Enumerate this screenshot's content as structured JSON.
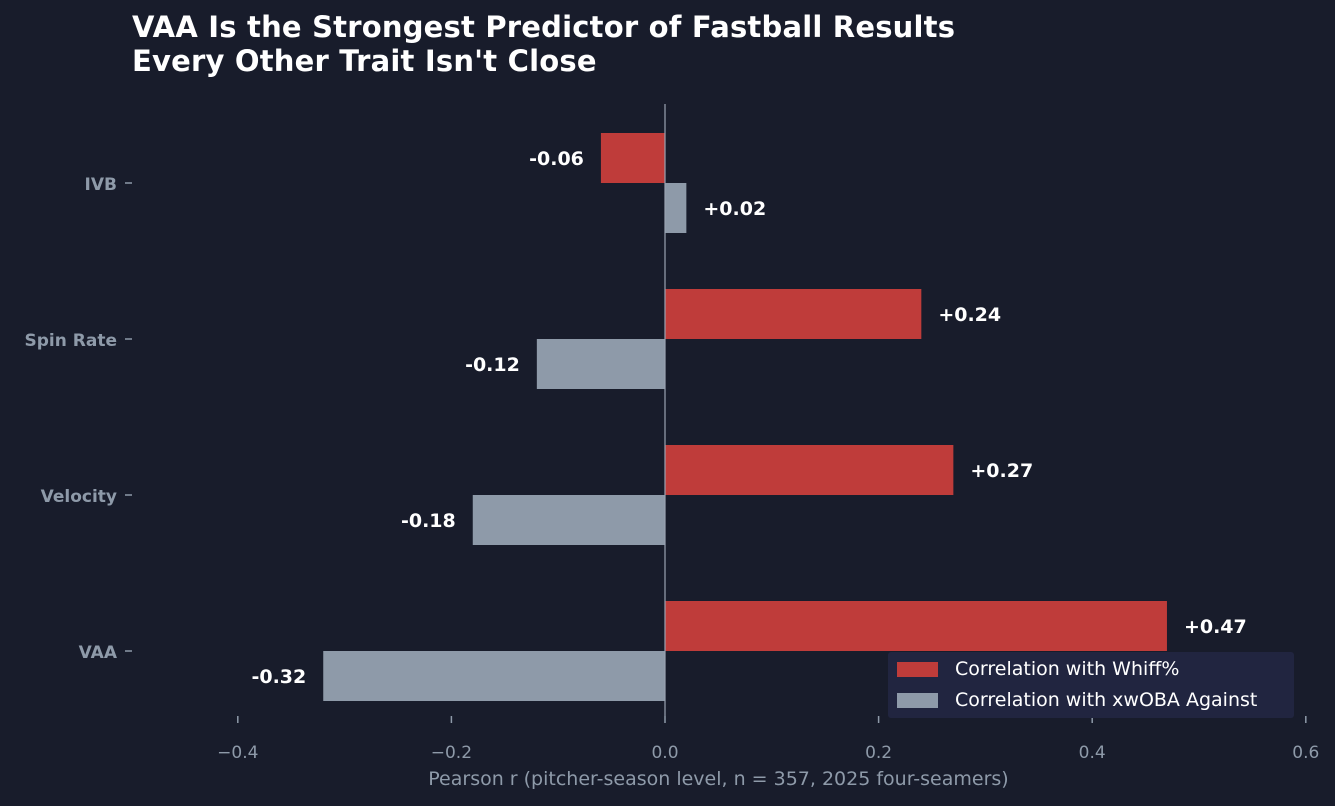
{
  "chart_data": {
    "type": "bar",
    "orientation": "horizontal",
    "title_lines": [
      "VAA Is the Strongest Predictor of Fastball Results",
      "Every Other Trait Isn't Close"
    ],
    "categories": [
      "IVB",
      "Spin Rate",
      "Velocity",
      "VAA"
    ],
    "series": [
      {
        "name": "Correlation with Whiff%",
        "color": "#bf3c3a",
        "values": [
          -0.06,
          0.24,
          0.27,
          0.47
        ],
        "labels": [
          "-0.06",
          "+0.24",
          "+0.27",
          "+0.47"
        ]
      },
      {
        "name": "Correlation with xwOBA Against",
        "color": "#8e9aa9",
        "values": [
          0.02,
          -0.12,
          -0.18,
          -0.32
        ],
        "labels": [
          "+0.02",
          "-0.12",
          "-0.18",
          "-0.32"
        ]
      }
    ],
    "xlabel": "Pearson r  (pitcher-season level, n = 357, 2025 four-seamers)",
    "xlim": [
      -0.5,
      0.6
    ],
    "xticks": [
      -0.4,
      -0.2,
      0.0,
      0.2,
      0.4,
      0.6
    ],
    "xtick_labels": [
      "−0.4",
      "−0.2",
      "0.0",
      "0.2",
      "0.4",
      "0.6"
    ],
    "grid": false,
    "legend_position": "bottom-right",
    "colors": {
      "background": "#181c2b",
      "zero_line": "#9aa3b2",
      "tick_text": "#8e9aa9",
      "value_text": "#ffffff",
      "legend_bg": "#212540"
    }
  }
}
